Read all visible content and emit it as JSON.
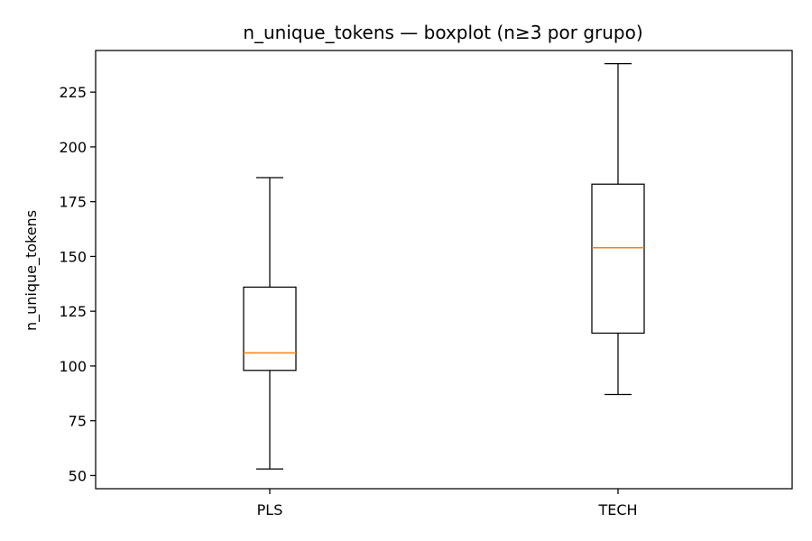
{
  "chart_data": {
    "type": "boxplot",
    "title": "n_unique_tokens — boxplot (n≥3 por grupo)",
    "xlabel": "",
    "ylabel": "n_unique_tokens",
    "ylim": [
      44,
      244
    ],
    "yticks": [
      50,
      75,
      100,
      125,
      150,
      175,
      200,
      225
    ],
    "categories": [
      "PLS",
      "TECH"
    ],
    "boxes": [
      {
        "category": "PLS",
        "whisker_low": 53,
        "q1": 98,
        "median": 106,
        "q3": 136,
        "whisker_high": 186
      },
      {
        "category": "TECH",
        "whisker_low": 87,
        "q1": 115,
        "median": 154,
        "q3": 183,
        "whisker_high": 238
      }
    ],
    "grid": false,
    "colors": {
      "box": "#000000",
      "median": "#ff7f0e",
      "frame": "#000000"
    }
  }
}
